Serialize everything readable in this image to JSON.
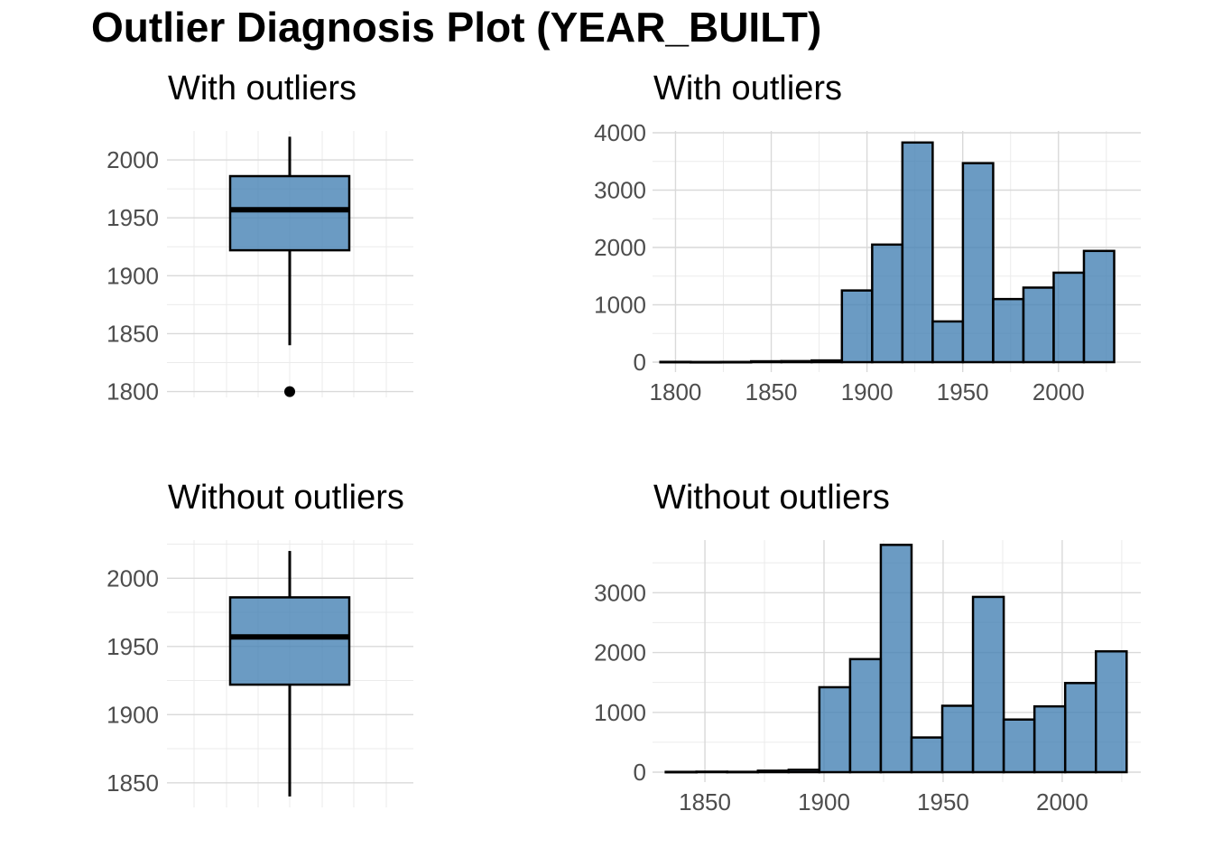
{
  "page": {
    "title": "Outlier Diagnosis Plot (YEAR_BUILT)"
  },
  "chart_data": [
    {
      "id": "box_with",
      "type": "box",
      "title": "With outliers",
      "ylim": [
        1795,
        2025
      ],
      "yticks": [
        1800,
        1850,
        1900,
        1950,
        2000
      ],
      "ytick_labels": [
        "1800",
        "1850",
        "1900",
        "1950",
        "2000"
      ],
      "stats": {
        "lower_whisker": 1840,
        "q1": 1922,
        "median": 1957,
        "q3": 1986,
        "upper_whisker": 2020
      },
      "outliers": [
        1800
      ],
      "fill": "#4682b4"
    },
    {
      "id": "hist_with",
      "type": "bar",
      "title": "With outliers",
      "xlim": [
        1788,
        2043
      ],
      "ylim": [
        0,
        4000
      ],
      "xticks": [
        1800,
        1850,
        1900,
        1950,
        2000
      ],
      "xtick_labels": [
        "1800",
        "1850",
        "1900",
        "1950",
        "2000"
      ],
      "yticks": [
        0,
        1000,
        2000,
        3000,
        4000
      ],
      "ytick_labels": [
        "0",
        "1000",
        "2000",
        "3000",
        "4000"
      ],
      "bin_width": 15.8,
      "bin_centers": [
        1800,
        1815.8,
        1831.6,
        1847.4,
        1863.2,
        1879,
        1894.8,
        1910.6,
        1926.4,
        1942.2,
        1958,
        1973.8,
        1989.6,
        2005.4,
        2021.2
      ],
      "values": [
        5,
        3,
        4,
        15,
        18,
        30,
        1250,
        2050,
        3830,
        710,
        3470,
        1100,
        1300,
        1560,
        1940
      ],
      "fill": "#4682b4"
    },
    {
      "id": "box_without",
      "type": "box",
      "title": "Without outliers",
      "ylim": [
        1832,
        2028
      ],
      "yticks": [
        1850,
        1900,
        1950,
        2000
      ],
      "ytick_labels": [
        "1850",
        "1900",
        "1950",
        "2000"
      ],
      "stats": {
        "lower_whisker": 1840,
        "q1": 1922,
        "median": 1957,
        "q3": 1986,
        "upper_whisker": 2020
      },
      "outliers": [],
      "fill": "#4682b4"
    },
    {
      "id": "hist_without",
      "type": "bar",
      "title": "Without outliers",
      "xlim": [
        1828,
        2033
      ],
      "ylim": [
        0,
        3850
      ],
      "xticks": [
        1850,
        1900,
        1950,
        2000
      ],
      "xtick_labels": [
        "1850",
        "1900",
        "1950",
        "2000"
      ],
      "yticks": [
        0,
        1000,
        2000,
        3000
      ],
      "ytick_labels": [
        "0",
        "1000",
        "2000",
        "3000"
      ],
      "bin_width": 12.9,
      "bin_centers": [
        1840,
        1852.9,
        1865.8,
        1878.7,
        1891.6,
        1904.5,
        1917.4,
        1930.3,
        1943.2,
        1956.1,
        1969,
        1981.9,
        1994.8,
        2007.7,
        2020.6
      ],
      "values": [
        5,
        8,
        6,
        25,
        40,
        1420,
        1890,
        3800,
        580,
        1110,
        2930,
        880,
        1100,
        1490,
        2020
      ],
      "fill": "#4682b4"
    }
  ]
}
